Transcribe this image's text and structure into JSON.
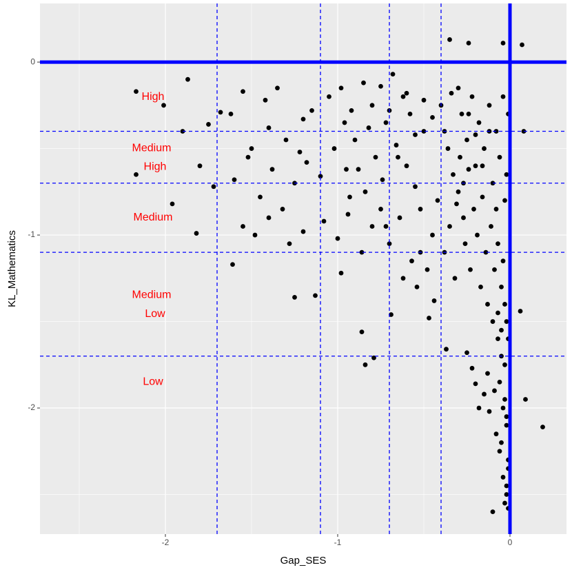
{
  "chart_data": {
    "type": "scatter",
    "x_label": "Gap_SES",
    "y_label": "KL_Mathematics",
    "xlim": [
      -2.728,
      0.328
    ],
    "ylim": [
      -2.729,
      0.339
    ],
    "xticks": [
      -2,
      -1,
      0
    ],
    "yticks": [
      0,
      -1,
      -2
    ],
    "x_minor_grid": [
      -2.5,
      -1.5,
      -0.5
    ],
    "y_minor_grid": [
      -0.5,
      -1.5,
      -2.5
    ],
    "grid": true,
    "color": "#000000",
    "x": [
      -0.35,
      -0.24,
      -0.04,
      0.07,
      -2.17,
      -1.87,
      -2.01,
      -2.17,
      -1.96,
      -1.82,
      0.19,
      -0.1,
      0.09,
      -0.86,
      -0.84,
      -0.79,
      -1.61,
      -1.25,
      -1.13,
      -0.47,
      -0.69,
      -0.37,
      0.08,
      0.06,
      -0.05,
      -0.02,
      -0.03,
      -0.01,
      -0.06,
      -0.08,
      -0.12,
      -0.15,
      -0.18,
      -0.2,
      -0.22,
      -0.25,
      -0.13,
      -0.09,
      -0.04,
      -0.02,
      -1.9,
      -1.75,
      -1.68,
      -1.55,
      -1.5,
      -1.42,
      -1.35,
      -1.3,
      -1.2,
      -1.15,
      -1.05,
      -0.98,
      -0.92,
      -0.85,
      -0.8,
      -0.75,
      -0.72,
      -0.68,
      -0.62,
      -0.58,
      -1.8,
      -1.72,
      -1.6,
      -1.52,
      -1.45,
      -1.38,
      -1.32,
      -1.25,
      -1.18,
      -1.1,
      -1.02,
      -0.95,
      -0.9,
      -0.84,
      -0.78,
      -0.74,
      -0.66,
      -0.6,
      -0.55,
      -0.5,
      -1.55,
      -1.48,
      -1.4,
      -1.28,
      -1.2,
      -1.08,
      -1.0,
      -0.94,
      -0.86,
      -0.8,
      -0.7,
      -0.64,
      -0.57,
      -0.52,
      -0.48,
      -0.45,
      -0.42,
      -0.38,
      -0.35,
      -0.32,
      -0.3,
      -0.28,
      -0.25,
      -0.22,
      -0.2,
      -0.18,
      -0.15,
      -0.12,
      -0.1,
      -0.08,
      -0.06,
      -0.04,
      -0.03,
      -0.02,
      -0.01,
      -0.3,
      -0.27,
      -0.24,
      -0.21,
      -0.19,
      -0.16,
      -0.14,
      -0.11,
      -0.09,
      -0.07,
      -0.05,
      -0.04,
      -0.03,
      -0.02,
      -0.01,
      -0.36,
      -0.33,
      -0.29,
      -0.26,
      -0.23,
      -0.17,
      -0.13,
      -0.1,
      -0.07,
      -0.05,
      -0.4,
      -0.38,
      -0.34,
      -0.31,
      -0.27,
      -0.24,
      -0.2,
      -0.16,
      -0.12,
      -0.08,
      -0.45,
      -0.5,
      -0.55,
      -0.6,
      -0.65,
      -0.7,
      -0.75,
      -0.82,
      -0.88,
      -0.93,
      -0.06,
      -0.03,
      -0.02,
      -0.01,
      -0.04,
      -0.02,
      -0.01,
      -0.03,
      -0.05,
      -0.07,
      -1.62,
      -1.4,
      -1.22,
      -0.96,
      -0.72,
      -0.54,
      -0.44,
      -0.52,
      -0.62,
      -0.98
    ],
    "values": [
      0.13,
      0.11,
      0.11,
      0.1,
      -0.17,
      -0.1,
      -0.25,
      -0.65,
      -0.82,
      -0.99,
      -2.11,
      -2.6,
      -1.95,
      -1.56,
      -1.75,
      -1.71,
      -1.17,
      -1.36,
      -1.35,
      -1.48,
      -1.46,
      -1.66,
      -0.4,
      -1.44,
      -2.2,
      -2.45,
      -2.55,
      -2.35,
      -2.25,
      -2.15,
      -2.02,
      -1.92,
      -2.0,
      -1.86,
      -1.77,
      -1.68,
      -1.8,
      -1.9,
      -2.0,
      -2.1,
      -0.4,
      -0.36,
      -0.29,
      -0.17,
      -0.5,
      -0.22,
      -0.15,
      -0.45,
      -0.33,
      -0.28,
      -0.2,
      -0.15,
      -0.28,
      -0.12,
      -0.25,
      -0.14,
      -0.35,
      -0.07,
      -0.2,
      -0.3,
      -0.6,
      -0.72,
      -0.68,
      -0.55,
      -0.78,
      -0.62,
      -0.85,
      -0.7,
      -0.58,
      -0.66,
      -0.5,
      -0.62,
      -0.45,
      -0.75,
      -0.55,
      -0.68,
      -0.48,
      -0.6,
      -0.72,
      -0.4,
      -0.95,
      -1.0,
      -0.9,
      -1.05,
      -0.98,
      -0.92,
      -1.02,
      -0.88,
      -1.1,
      -0.95,
      -1.05,
      -0.9,
      -1.15,
      -0.85,
      -1.2,
      -1.0,
      -0.8,
      -1.1,
      -0.95,
      -1.25,
      -0.15,
      -0.3,
      -0.45,
      -0.2,
      -0.6,
      -0.35,
      -0.5,
      -0.25,
      -0.7,
      -0.4,
      -0.55,
      -0.2,
      -0.8,
      -0.65,
      -0.3,
      -0.75,
      -0.9,
      -0.62,
      -0.85,
      -1.0,
      -0.78,
      -1.1,
      -0.95,
      -1.2,
      -1.05,
      -1.3,
      -1.15,
      -1.4,
      -1.5,
      -1.6,
      -0.5,
      -0.65,
      -0.55,
      -1.05,
      -1.2,
      -1.3,
      -1.4,
      -1.5,
      -1.6,
      -1.7,
      -0.25,
      -0.4,
      -0.18,
      -0.82,
      -0.7,
      -0.3,
      -0.42,
      -0.6,
      -0.4,
      -0.85,
      -0.32,
      -0.22,
      -0.42,
      -0.18,
      -0.55,
      -0.28,
      -0.85,
      -0.38,
      -0.62,
      -0.78,
      -1.85,
      -1.95,
      -2.05,
      -2.3,
      -2.4,
      -2.5,
      -2.58,
      -1.75,
      -1.55,
      -1.45,
      -0.3,
      -0.38,
      -0.52,
      -0.35,
      -0.95,
      -1.3,
      -1.38,
      -1.1,
      -1.25,
      -1.22
    ],
    "reference_lines": {
      "color": "#0000ff",
      "solid_x": [
        0
      ],
      "solid_y": [
        0
      ],
      "dashed_x": [
        -1.7,
        -1.1,
        -0.7,
        -0.4
      ],
      "dashed_y": [
        -0.4,
        -0.7,
        -1.1,
        -1.7
      ]
    },
    "annotation_color": "#ff0000",
    "annotations": [
      {
        "text": "High",
        "x": -2.072,
        "y": -0.203
      },
      {
        "text": "Medium",
        "x": -2.08,
        "y": -0.498
      },
      {
        "text": "High",
        "x": -2.06,
        "y": -0.606
      },
      {
        "text": "Medium",
        "x": -2.072,
        "y": -0.9
      },
      {
        "text": "Medium",
        "x": -2.08,
        "y": -1.347
      },
      {
        "text": "Low",
        "x": -2.06,
        "y": -1.458
      },
      {
        "text": "Low",
        "x": -2.072,
        "y": -1.849
      }
    ]
  }
}
